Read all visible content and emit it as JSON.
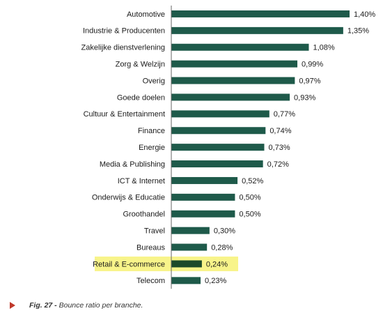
{
  "colors": {
    "bar": "#1e5a4a",
    "highlight_bar": "#1c4a2a",
    "highlight_bg": "#f8f48a",
    "axis": "#666666",
    "caption_marker": "#c0392b"
  },
  "caption": {
    "label": "Fig. 27 -",
    "text": "Bounce ratio per branche."
  },
  "chart_data": {
    "type": "bar",
    "orientation": "horizontal",
    "value_suffix": "%",
    "decimal_separator": ",",
    "xlim": [
      0,
      1.4
    ],
    "highlight": "Retail & E-commerce",
    "categories": [
      "Automotive",
      "Industrie & Producenten",
      "Zakelijke dienstverlening",
      "Zorg & Welzijn",
      "Overig",
      "Goede doelen",
      "Cultuur & Entertainment",
      "Finance",
      "Energie",
      "Media & Publishing",
      "ICT & Internet",
      "Onderwijs & Educatie",
      "Groothandel",
      "Travel",
      "Bureaus",
      "Retail & E-commerce",
      "Telecom"
    ],
    "values": [
      1.4,
      1.35,
      1.08,
      0.99,
      0.97,
      0.93,
      0.77,
      0.74,
      0.73,
      0.72,
      0.52,
      0.5,
      0.5,
      0.3,
      0.28,
      0.24,
      0.23
    ],
    "value_labels": [
      "1,40%",
      "1,35%",
      "1,08%",
      "0,99%",
      "0,97%",
      "0,93%",
      "0,77%",
      "0,74%",
      "0,73%",
      "0,72%",
      "0,52%",
      "0,50%",
      "0,50%",
      "0,30%",
      "0,28%",
      "0,24%",
      "0,23%"
    ]
  }
}
